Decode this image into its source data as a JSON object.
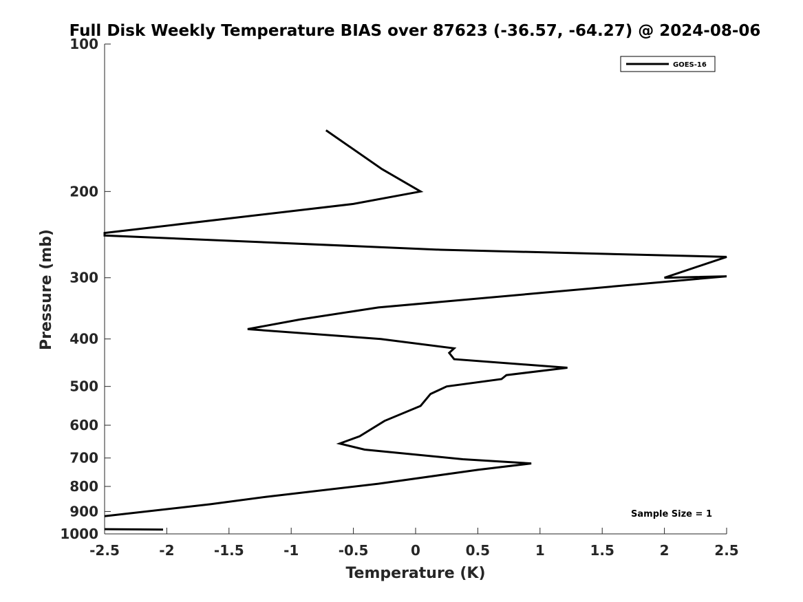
{
  "chart_data": {
    "type": "line",
    "title": "Full Disk Weekly Temperature BIAS over 87623 (-36.57, -64.27) @ 2024-08-06",
    "xlabel": "Temperature (K)",
    "ylabel": "Pressure (mb)",
    "xlim": [
      -2.5,
      2.5
    ],
    "ylim": [
      100,
      1000
    ],
    "yscale": "log",
    "y_reversed": true,
    "grid": false,
    "x_ticks": [
      -2.5,
      -2,
      -1.5,
      -1,
      -0.5,
      0,
      0.5,
      1,
      1.5,
      2,
      2.5
    ],
    "x_tick_labels": [
      "-2.5",
      "-2",
      "-1.5",
      "-1",
      "-0.5",
      "0",
      "0.5",
      "1",
      "1.5",
      "2",
      "2.5"
    ],
    "y_ticks": [
      100,
      200,
      300,
      400,
      500,
      600,
      700,
      800,
      900,
      1000
    ],
    "y_tick_labels": [
      "100",
      "200",
      "300",
      "400",
      "500",
      "600",
      "700",
      "800",
      "900",
      "1000"
    ],
    "legend": {
      "position": "top-right",
      "entries": [
        "GOES-16"
      ]
    },
    "annotation": "Sample Size = 1",
    "series": [
      {
        "name": "GOES-16",
        "color": "#000000",
        "segments": [
          [
            [
              -0.72,
              150
            ],
            [
              -0.27,
              180
            ],
            [
              0.04,
              200
            ],
            [
              -0.5,
              212
            ],
            [
              -2.5,
              243
            ],
            [
              -2.5,
              246
            ],
            [
              0.2,
              263
            ],
            [
              2.5,
              272
            ],
            [
              2.0,
              300
            ],
            [
              2.5,
              298
            ],
            [
              -0.3,
              345
            ],
            [
              -0.93,
              365
            ],
            [
              -1.35,
              382
            ],
            [
              -0.28,
              400
            ],
            [
              0.31,
              418
            ],
            [
              0.27,
              427
            ],
            [
              0.31,
              440
            ],
            [
              1.22,
              458
            ],
            [
              0.73,
              474
            ],
            [
              0.69,
              483
            ],
            [
              0.25,
              500
            ],
            [
              0.12,
              518
            ],
            [
              0.04,
              548
            ],
            [
              -0.25,
              588
            ],
            [
              -0.45,
              632
            ],
            [
              -0.61,
              654
            ],
            [
              -0.41,
              673
            ],
            [
              0.38,
              704
            ],
            [
              0.93,
              718
            ],
            [
              0.5,
              740
            ],
            [
              -0.3,
              790
            ],
            [
              -1.2,
              840
            ],
            [
              -1.65,
              870
            ],
            [
              -2.5,
              920
            ]
          ],
          [
            [
              -2.5,
              978
            ],
            [
              -2.03,
              980
            ]
          ]
        ]
      }
    ]
  }
}
